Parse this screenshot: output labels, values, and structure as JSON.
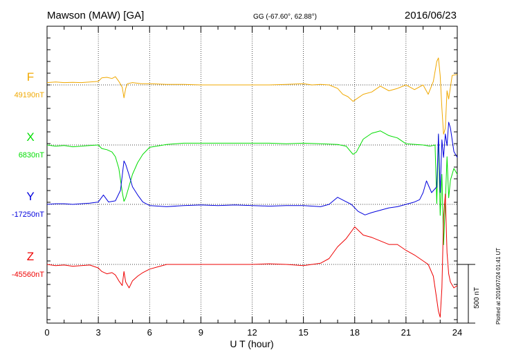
{
  "header": {
    "station": "Mawson (MAW)  [GA]",
    "coords": "GG (-67.60°,  62.88°)",
    "date": "2016/06/23"
  },
  "plotted_note": "Plotted at 2016/07/24 01:41 UT",
  "scale_label": "500 nT",
  "colors": {
    "F": "#f0a800",
    "X": "#00dd00",
    "Y": "#0000dd",
    "Z": "#ee0000"
  },
  "chart_data": {
    "type": "line",
    "xlabel": "U T (hour)",
    "xlim": [
      0,
      24
    ],
    "xticks": [
      "0",
      "3",
      "6",
      "9",
      "12",
      "15",
      "18",
      "21",
      "24"
    ],
    "grid": true,
    "y_units": "nT offset from baseline",
    "scale_bar_nT": 500,
    "series": [
      {
        "name": "F",
        "baseline": "49190nT",
        "x": [
          0,
          0.5,
          1,
          1.5,
          2,
          2.5,
          3,
          3.2,
          3.5,
          3.8,
          4.0,
          4.2,
          4.4,
          4.5,
          4.6,
          4.7,
          5,
          5.5,
          6,
          7,
          8,
          9,
          10,
          11,
          12,
          13,
          14,
          15,
          15.5,
          16,
          16.5,
          17,
          17.3,
          17.6,
          17.9,
          18.2,
          18.5,
          19,
          19.5,
          20,
          20.5,
          21,
          21.5,
          22,
          22.3,
          22.6,
          22.8,
          22.9,
          23.0,
          23.1,
          23.2,
          23.3,
          23.4,
          23.5,
          23.7,
          24
        ],
        "values": [
          20,
          25,
          20,
          22,
          20,
          25,
          30,
          60,
          65,
          55,
          70,
          30,
          -20,
          -110,
          -30,
          10,
          20,
          10,
          10,
          5,
          5,
          0,
          0,
          0,
          0,
          0,
          5,
          10,
          0,
          5,
          0,
          -30,
          -80,
          -100,
          -140,
          -110,
          -80,
          -60,
          -10,
          -50,
          -30,
          0,
          -40,
          0,
          -80,
          30,
          200,
          230,
          80,
          -200,
          -420,
          -370,
          -50,
          -120,
          80,
          90
        ]
      },
      {
        "name": "X",
        "baseline": "6830nT",
        "x": [
          0,
          0.5,
          1,
          1.5,
          2,
          2.5,
          3,
          3.2,
          3.5,
          3.8,
          4.0,
          4.2,
          4.4,
          4.5,
          4.6,
          4.8,
          5.0,
          5.3,
          5.6,
          6,
          7,
          8,
          9,
          10,
          11,
          12,
          13,
          14,
          15,
          16,
          17,
          17.5,
          17.9,
          18.1,
          18.5,
          19,
          19.5,
          20,
          20.5,
          21,
          22,
          22.4,
          22.7,
          22.8,
          22.9,
          23.0,
          23.1,
          23.2,
          23.3,
          23.4,
          23.5,
          23.6,
          23.8,
          24
        ],
        "values": [
          0,
          -10,
          -5,
          -15,
          -10,
          -5,
          0,
          -30,
          -40,
          -60,
          -100,
          -200,
          -400,
          -480,
          -450,
          -350,
          -250,
          -150,
          -80,
          -20,
          5,
          15,
          15,
          15,
          15,
          15,
          15,
          10,
          15,
          10,
          5,
          -10,
          -80,
          -60,
          50,
          100,
          120,
          80,
          60,
          10,
          0,
          -10,
          0,
          -500,
          80,
          -600,
          -250,
          -850,
          -500,
          -100,
          -450,
          -300,
          -200,
          -250
        ]
      },
      {
        "name": "Y",
        "baseline": "-17250nT",
        "x": [
          0,
          0.5,
          1,
          1.5,
          2,
          2.5,
          3,
          3.3,
          3.6,
          4.0,
          4.3,
          4.5,
          4.6,
          4.8,
          5.0,
          5.3,
          5.6,
          6,
          7,
          8,
          9,
          10,
          11,
          12,
          13,
          14,
          15,
          16,
          16.5,
          17,
          17.4,
          17.8,
          18.2,
          18.6,
          19,
          19.5,
          20,
          20.5,
          21,
          21.5,
          21.8,
          22.0,
          22.2,
          22.5,
          22.8,
          22.9,
          23.0,
          23.1,
          23.2,
          23.3,
          23.4,
          23.5,
          23.6,
          23.8,
          24
        ],
        "values": [
          0,
          5,
          5,
          0,
          5,
          10,
          20,
          80,
          20,
          30,
          120,
          370,
          340,
          250,
          150,
          80,
          20,
          -10,
          -20,
          -10,
          -5,
          -10,
          -5,
          -10,
          -15,
          -10,
          -10,
          -20,
          0,
          60,
          30,
          0,
          -60,
          -90,
          -70,
          -50,
          -30,
          -20,
          0,
          20,
          40,
          100,
          200,
          100,
          150,
          600,
          100,
          550,
          400,
          600,
          500,
          700,
          650,
          450,
          400
        ]
      },
      {
        "name": "Z",
        "baseline": "-45560nT",
        "x": [
          0,
          0.5,
          1,
          1.5,
          2,
          2.5,
          3,
          3.2,
          3.5,
          3.8,
          4.0,
          4.2,
          4.4,
          4.5,
          4.6,
          4.8,
          5.0,
          5.3,
          5.6,
          6,
          6.5,
          7,
          8,
          9,
          10,
          11,
          12,
          13,
          14,
          15,
          15.5,
          16,
          16.5,
          17,
          17.5,
          18,
          18.5,
          19,
          20,
          20.5,
          21,
          21.5,
          22,
          22.3,
          22.6,
          22.8,
          22.9,
          23.0,
          23.1,
          23.2,
          23.3,
          23.4,
          23.5,
          23.6,
          23.8,
          24
        ],
        "values": [
          0,
          -10,
          -5,
          -15,
          -10,
          -5,
          -30,
          -60,
          -80,
          -70,
          -90,
          -140,
          -180,
          -60,
          -150,
          -200,
          -140,
          -100,
          -70,
          -40,
          -20,
          0,
          0,
          0,
          0,
          0,
          0,
          5,
          0,
          -10,
          0,
          10,
          50,
          150,
          220,
          320,
          250,
          230,
          170,
          170,
          120,
          80,
          30,
          0,
          -100,
          -300,
          -400,
          -450,
          -200,
          400,
          600,
          100,
          -80,
          -150,
          -200,
          -180
        ]
      }
    ]
  }
}
